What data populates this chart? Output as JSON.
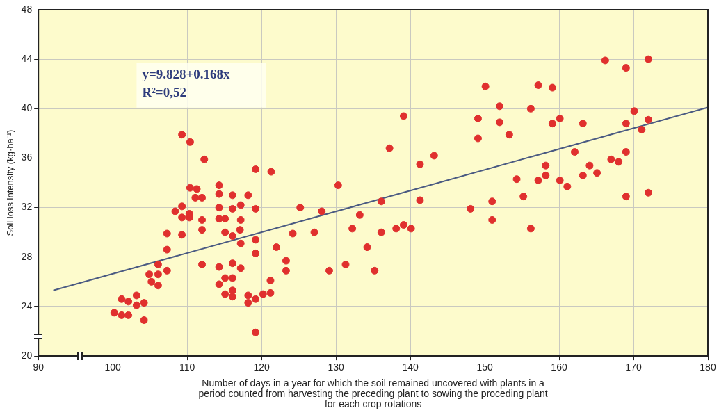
{
  "chart_data": {
    "type": "scatter",
    "xlabel": "Number of days in a year for which the soil remained uncovered with plants in a period counted from harvesting the preceding plant to sowing the proceding plant for each crop rotations",
    "ylabel": "Soil loss intensity (kg·ha⁻¹)",
    "annotations": [
      "y=9.828+0.168x",
      "R²=0,52"
    ],
    "xlim": [
      90,
      180
    ],
    "ylim": [
      20,
      48
    ],
    "xticks": [
      90,
      100,
      110,
      120,
      130,
      140,
      150,
      160,
      170,
      180
    ],
    "yticks": [
      20,
      24,
      28,
      32,
      36,
      40,
      44,
      48
    ],
    "grid": true,
    "series": [
      {
        "color": "#e0302e",
        "marker": "circle",
        "x": [
          100.2,
          101.2,
          102.1,
          101.2,
          102.1,
          103.2,
          103.2,
          104.2,
          104.2,
          104.9,
          105.2,
          106.1,
          106.1,
          106.1,
          107.3,
          107.3,
          107.3,
          109.3,
          108.4,
          109.3,
          109.3,
          110.3,
          110.3,
          110.4,
          111.3,
          111.1,
          112.0,
          109.3,
          110.4,
          112.3,
          112.0,
          112.0,
          112.0,
          114.3,
          114.3,
          114.3,
          114.3,
          115.1,
          115.1,
          114.3,
          114.3,
          115.1,
          116.1,
          116.1,
          115.1,
          116.1,
          116.1,
          116.1,
          116.1,
          117.2,
          117.2,
          117.1,
          116.1,
          117.2,
          117.2,
          118.2,
          119.2,
          121.3,
          119.2,
          119.2,
          119.2,
          118.2,
          118.2,
          119.2,
          120.2,
          121.2,
          121.2,
          119.2,
          122.0,
          123.3,
          123.3,
          124.2,
          125.2,
          127.1,
          128.1,
          129.1,
          130.3,
          131.3,
          132.2,
          133.2,
          134.2,
          135.2,
          136.1,
          136.1,
          137.2,
          138.1,
          139.1,
          140.1,
          139.1,
          141.3,
          141.3,
          143.2,
          148.1,
          149.1,
          149.1,
          150.1,
          151.0,
          151.0,
          152.0,
          152.0,
          153.3,
          154.3,
          155.2,
          156.2,
          156.2,
          157.2,
          157.2,
          158.2,
          158.2,
          159.1,
          159.1,
          160.1,
          160.1,
          161.1,
          162.1,
          163.2,
          163.2,
          164.1,
          165.1,
          166.2,
          167.0,
          168.0,
          169.0,
          169.0,
          169.0,
          169.0,
          170.1,
          171.1,
          172.0,
          172.0,
          172.0
        ],
        "values": [
          23.5,
          23.3,
          23.3,
          24.6,
          24.4,
          24.9,
          24.1,
          24.3,
          22.9,
          26.6,
          26.0,
          27.4,
          26.6,
          25.7,
          26.9,
          28.6,
          29.9,
          29.8,
          31.7,
          32.1,
          31.2,
          31.5,
          31.2,
          33.6,
          33.5,
          32.8,
          32.8,
          37.9,
          37.3,
          35.9,
          31.0,
          30.2,
          27.4,
          33.8,
          33.1,
          32.0,
          31.1,
          31.1,
          30.0,
          27.2,
          25.8,
          26.3,
          26.3,
          27.5,
          25.0,
          25.3,
          24.8,
          33.0,
          31.9,
          32.2,
          31.0,
          30.2,
          29.7,
          29.1,
          27.1,
          33.0,
          35.1,
          34.9,
          31.9,
          29.4,
          28.3,
          24.9,
          24.3,
          24.6,
          25.0,
          25.1,
          26.1,
          21.9,
          28.8,
          27.7,
          26.9,
          29.9,
          32.0,
          30.0,
          31.7,
          26.9,
          33.8,
          27.4,
          30.3,
          31.4,
          28.8,
          26.9,
          32.5,
          30.0,
          36.8,
          30.3,
          30.6,
          30.3,
          39.4,
          35.5,
          32.6,
          36.2,
          31.9,
          37.6,
          39.2,
          41.8,
          32.5,
          31.0,
          40.2,
          38.9,
          37.9,
          34.3,
          32.9,
          40.0,
          30.3,
          41.9,
          34.2,
          35.4,
          34.6,
          41.7,
          38.8,
          39.2,
          34.2,
          33.7,
          36.5,
          38.8,
          34.6,
          35.4,
          34.8,
          43.9,
          35.9,
          35.7,
          43.3,
          38.8,
          36.5,
          32.9,
          39.8,
          38.3,
          44.0,
          39.1,
          33.2
        ]
      },
      {
        "type": "line",
        "marker": "none",
        "color": "#4a5a82",
        "x": [
          92,
          180
        ],
        "values": [
          25.3,
          40.1
        ]
      }
    ]
  }
}
